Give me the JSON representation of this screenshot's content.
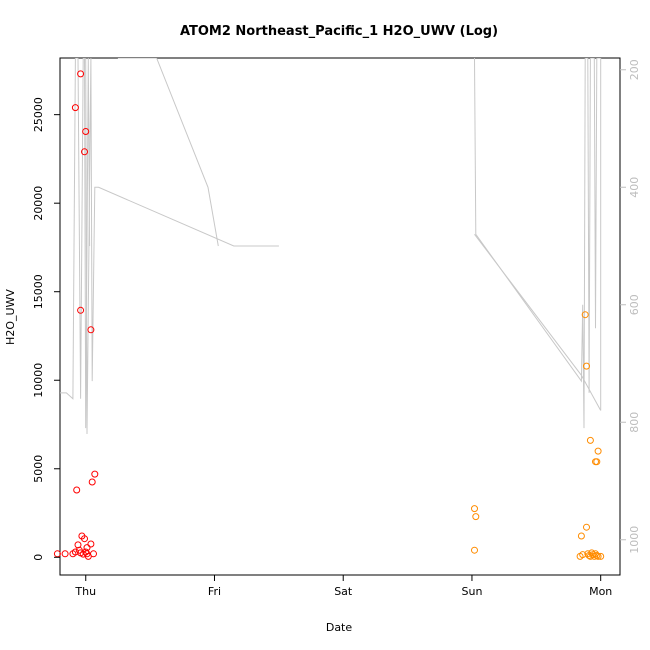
{
  "chart_data": {
    "type": "scatter",
    "title": "ATOM2 Northeast_Pacific_1 H2O_UWV (Log)",
    "xlabel": "Date",
    "ylabel": "H2O_UWV",
    "x_tick_labels": [
      "Thu",
      "Fri",
      "Sat",
      "Sun",
      "Mon"
    ],
    "x_ticks": [
      0,
      1,
      2,
      3,
      4
    ],
    "xlim": [
      -0.2,
      4.15
    ],
    "ylim": [
      -1000,
      28200
    ],
    "y_ticks": [
      0,
      5000,
      10000,
      15000,
      20000,
      25000
    ],
    "y_tick_labels": [
      "0",
      "5000",
      "10000",
      "15000",
      "20000",
      "25000"
    ],
    "right_axis": {
      "ylim": [
        1060,
        180
      ],
      "ticks": [
        200,
        400,
        600,
        800,
        1000
      ],
      "tick_labels": [
        "200",
        "400",
        "600",
        "800",
        "1000"
      ],
      "color": "#bdbdbd"
    },
    "series": [
      {
        "color": "#ff0000",
        "marker": "open-circle",
        "points": [
          [
            0.0,
            24050
          ],
          [
            -0.01,
            22900
          ],
          [
            0.04,
            12850
          ],
          [
            0.07,
            4700
          ],
          [
            0.05,
            4250
          ],
          [
            0.04,
            750
          ],
          [
            0.06,
            200
          ],
          [
            0.02,
            50
          ],
          [
            -0.22,
            200
          ],
          [
            -0.16,
            200
          ],
          [
            -0.1,
            200
          ],
          [
            -0.08,
            300
          ],
          [
            -0.07,
            3800
          ],
          [
            -0.06,
            700
          ],
          [
            -0.05,
            400
          ],
          [
            -0.04,
            250
          ],
          [
            -0.03,
            1200
          ],
          [
            -0.02,
            180
          ],
          [
            -0.01,
            1050
          ],
          [
            0.0,
            300
          ],
          [
            0.01,
            200
          ],
          [
            0.01,
            550
          ],
          [
            -0.08,
            25400
          ],
          [
            -0.04,
            27300
          ],
          [
            -0.04,
            13950
          ]
        ]
      },
      {
        "color": "#ff8c00",
        "marker": "open-circle",
        "points": [
          [
            3.02,
            2750
          ],
          [
            3.03,
            2300
          ],
          [
            3.02,
            400
          ],
          [
            3.85,
            1200
          ],
          [
            3.88,
            13700
          ],
          [
            3.89,
            10800
          ],
          [
            3.89,
            1700
          ],
          [
            3.92,
            6600
          ],
          [
            3.96,
            5400
          ],
          [
            3.97,
            5400
          ],
          [
            3.98,
            6000
          ],
          [
            3.84,
            50
          ],
          [
            3.86,
            150
          ],
          [
            3.9,
            200
          ],
          [
            3.91,
            100
          ],
          [
            3.92,
            50
          ],
          [
            3.93,
            250
          ],
          [
            3.94,
            150
          ],
          [
            3.95,
            50
          ],
          [
            3.96,
            200
          ],
          [
            3.97,
            100
          ],
          [
            3.98,
            50
          ],
          [
            4.0,
            50
          ]
        ]
      },
      {
        "color": "#c8c8c8",
        "marker": "line",
        "axis": "right",
        "points": [
          [
            0.0,
            180
          ],
          [
            0.01,
            820
          ],
          [
            0.04,
            180
          ],
          [
            0.05,
            730
          ],
          [
            0.07,
            400
          ],
          [
            0.1,
            400
          ],
          [
            1.15,
            500
          ],
          [
            1.5,
            500
          ]
        ]
      },
      {
        "color": "#c8c8c8",
        "marker": "line",
        "axis": "right",
        "points": [
          [
            0.25,
            180
          ],
          [
            0.3,
            180
          ],
          [
            0.55,
            180
          ],
          [
            0.95,
            400
          ],
          [
            1.03,
            500
          ]
        ]
      },
      {
        "color": "#c8c8c8",
        "marker": "line",
        "axis": "right",
        "points": [
          [
            -0.22,
            750
          ],
          [
            -0.15,
            750
          ],
          [
            -0.1,
            760
          ],
          [
            -0.08,
            180
          ],
          [
            -0.06,
            180
          ],
          [
            -0.04,
            760
          ],
          [
            -0.02,
            180
          ],
          [
            -0.01,
            180
          ],
          [
            0.0,
            810
          ],
          [
            0.02,
            180
          ],
          [
            0.03,
            500
          ]
        ]
      },
      {
        "color": "#c8c8c8",
        "marker": "line",
        "axis": "right",
        "points": [
          [
            3.02,
            180
          ],
          [
            3.03,
            480
          ],
          [
            3.85,
            730
          ],
          [
            3.86,
            600
          ],
          [
            3.87,
            810
          ],
          [
            3.88,
            180
          ],
          [
            3.9,
            180
          ],
          [
            3.91,
            750
          ],
          [
            3.92,
            180
          ],
          [
            3.95,
            180
          ],
          [
            3.96,
            640
          ],
          [
            3.97,
            180
          ],
          [
            4.0,
            180
          ],
          [
            4.0,
            780
          ]
        ]
      },
      {
        "color": "#c8c8c8",
        "marker": "line",
        "axis": "right",
        "points": [
          [
            3.02,
            480
          ],
          [
            3.85,
            720
          ],
          [
            4.0,
            780
          ]
        ]
      }
    ]
  }
}
